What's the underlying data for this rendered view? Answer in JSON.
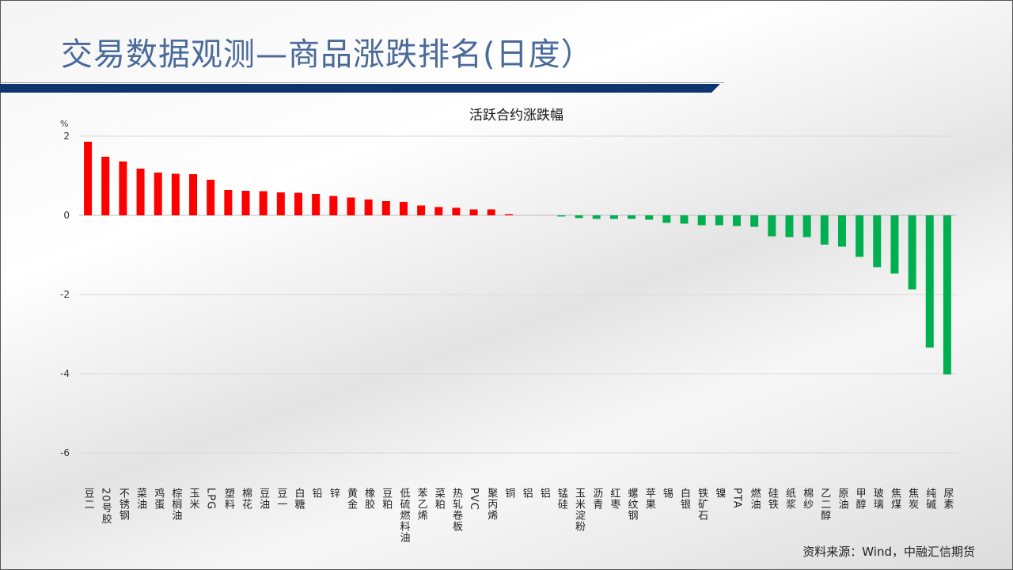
{
  "header": {
    "title": "交易数据观测—商品涨跌排名(日度）"
  },
  "footer": {
    "source": "资料来源：Wind，中融汇信期货"
  },
  "colors": {
    "up": "#ff0000",
    "down": "#00b050",
    "title": "#4a6a9a",
    "bar": "#0e3470"
  },
  "chart_data": {
    "type": "bar",
    "title": "活跃合约涨跌幅",
    "ylabel": "%",
    "xlabel": "",
    "ylim": [
      -6,
      2
    ],
    "yticks": [
      2,
      0,
      -2,
      -4,
      -6
    ],
    "grid": true,
    "categories": [
      "豆二",
      "20号胶",
      "不锈钢",
      "菜油",
      "鸡蛋",
      "棕榈油",
      "玉米",
      "LPG",
      "塑料",
      "棉花",
      "豆油",
      "豆一",
      "白糖",
      "铅",
      "锌",
      "黄金",
      "橡胶",
      "豆粕",
      "低硫燃料油",
      "苯乙烯",
      "菜粕",
      "热轧卷板",
      "PVC",
      "聚丙烯",
      "铜",
      "铝",
      "铝",
      "锰硅",
      "玉米淀粉",
      "沥青",
      "红枣",
      "螺纹钢",
      "苹果",
      "锡",
      "白银",
      "铁矿石",
      "镍",
      "PTA",
      "燃油",
      "硅铁",
      "纸浆",
      "棉纱",
      "乙二醇",
      "原油",
      "甲醇",
      "玻璃",
      "焦煤",
      "焦炭",
      "纯碱",
      "尿素"
    ],
    "values": [
      1.86,
      1.48,
      1.36,
      1.18,
      1.08,
      1.05,
      1.04,
      0.9,
      0.64,
      0.62,
      0.61,
      0.58,
      0.57,
      0.54,
      0.49,
      0.45,
      0.4,
      0.36,
      0.34,
      0.25,
      0.21,
      0.19,
      0.15,
      0.15,
      0.03,
      0,
      0,
      -0.02,
      -0.07,
      -0.09,
      -0.09,
      -0.09,
      -0.11,
      -0.19,
      -0.21,
      -0.25,
      -0.25,
      -0.27,
      -0.29,
      -0.53,
      -0.55,
      -0.55,
      -0.74,
      -0.79,
      -1.05,
      -1.31,
      -1.47,
      -1.87,
      -3.34,
      -4.02
    ]
  }
}
